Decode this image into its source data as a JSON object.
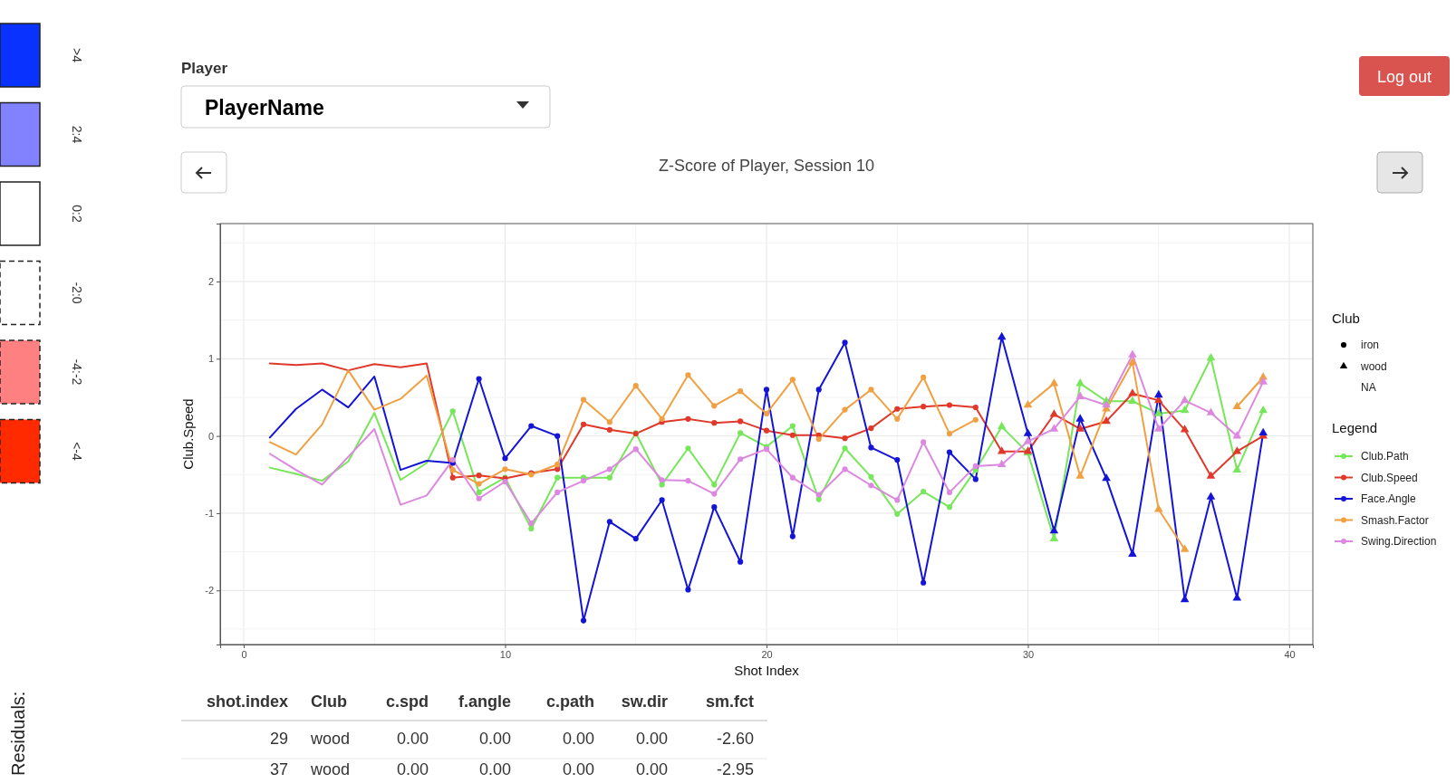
{
  "chart_data": {
    "type": "line",
    "title": "Z-Score of Player, Session 10",
    "xlabel": "Shot Index",
    "ylabel": "Club.Speed",
    "legend_title": "Legend",
    "x": [
      1,
      2,
      3,
      4,
      5,
      6,
      7,
      8,
      9,
      10,
      11,
      12,
      13,
      14,
      15,
      16,
      17,
      18,
      19,
      20,
      21,
      22,
      23,
      24,
      25,
      26,
      27,
      28,
      29,
      30,
      31,
      32,
      33,
      34,
      35,
      36,
      37,
      38,
      39
    ],
    "xlim": [
      -0.9,
      40.9
    ],
    "ylim": [
      -2.7,
      2.75
    ],
    "xticks": [
      0,
      10,
      20,
      30,
      40
    ],
    "yticks": [
      -2,
      -1,
      0,
      1,
      2
    ],
    "grid": true,
    "legend": "right",
    "marker": "none",
    "series": [
      {
        "name": "Club.Path",
        "color": "#77e65a",
        "values": [
          -0.41,
          -0.49,
          -0.58,
          -0.33,
          0.3,
          -0.57,
          -0.35,
          0.32,
          -0.73,
          -0.54,
          -1.2,
          -0.54,
          -0.54,
          -0.54,
          0.04,
          -0.63,
          -0.16,
          -0.63,
          0.04,
          -0.14,
          0.13,
          -0.82,
          -0.16,
          -0.53,
          -1.01,
          -0.72,
          -0.92,
          -0.44,
          0.12,
          -0.22,
          -1.33,
          0.68,
          0.45,
          0.45,
          0.29,
          0.33,
          1.01,
          -0.44,
          0.33
        ]
      },
      {
        "name": "Club.Speed",
        "color": "#e0382b",
        "values": [
          0.94,
          0.92,
          0.94,
          0.85,
          0.93,
          0.89,
          0.94,
          -0.54,
          -0.51,
          -0.55,
          -0.48,
          -0.43,
          0.15,
          0.08,
          0.03,
          0.18,
          0.22,
          0.17,
          0.19,
          0.07,
          0.01,
          0.01,
          -0.03,
          0.1,
          0.35,
          0.38,
          0.4,
          0.37,
          -0.2,
          -0.2,
          0.28,
          0.09,
          0.19,
          0.55,
          0.46,
          0.08,
          -0.52,
          -0.2,
          0.0
        ]
      },
      {
        "name": "Face.Angle",
        "color": "#1414d8",
        "values": [
          -0.02,
          0.35,
          0.6,
          0.37,
          0.77,
          -0.44,
          -0.32,
          -0.35,
          0.74,
          -0.29,
          0.13,
          0.0,
          -2.39,
          -1.11,
          -1.33,
          -0.83,
          -1.99,
          -0.92,
          -1.63,
          0.6,
          -1.3,
          0.6,
          1.21,
          -0.15,
          -0.31,
          -1.9,
          -0.21,
          -0.56,
          1.28,
          0.03,
          -1.23,
          0.22,
          -0.55,
          -1.53,
          0.53,
          -2.12,
          -0.79,
          -2.1,
          0.04
        ]
      },
      {
        "name": "Smash.Factor",
        "color": "#f0a040",
        "values": [
          -0.08,
          -0.24,
          0.15,
          0.85,
          0.34,
          0.48,
          0.78,
          -0.44,
          -0.62,
          -0.43,
          -0.5,
          -0.37,
          0.47,
          0.18,
          0.65,
          0.22,
          0.79,
          0.39,
          0.58,
          0.29,
          0.73,
          -0.04,
          0.34,
          0.6,
          0.22,
          0.76,
          0.03,
          0.21,
          null,
          0.4,
          0.68,
          -0.52,
          0.35,
          0.95,
          -0.95,
          -1.47,
          null,
          0.38,
          0.76
        ]
      },
      {
        "name": "Swing.Direction",
        "color": "#dd88e0",
        "values": [
          -0.23,
          -0.44,
          -0.63,
          -0.27,
          0.09,
          -0.89,
          -0.77,
          -0.31,
          -0.81,
          -0.59,
          -1.13,
          -0.73,
          -0.58,
          -0.43,
          -0.17,
          -0.57,
          -0.58,
          -0.75,
          -0.3,
          -0.17,
          -0.54,
          -0.76,
          -0.43,
          -0.64,
          -0.83,
          -0.08,
          -0.73,
          -0.39,
          -0.37,
          -0.07,
          0.09,
          0.51,
          0.4,
          1.05,
          0.09,
          0.46,
          0.3,
          0.0,
          0.7
        ]
      },
      {
        "type": "scatter",
        "marker": "circle",
        "x": [
          8,
          9,
          10,
          11,
          12,
          13,
          14,
          15,
          16,
          17,
          18,
          19,
          20,
          21,
          22,
          23,
          24,
          25,
          26,
          27,
          28,
          8,
          9,
          10,
          11,
          12,
          13,
          14,
          15,
          16,
          17,
          18,
          19,
          20,
          21,
          22,
          23,
          24,
          25,
          26,
          27,
          28,
          8,
          9,
          10,
          11,
          12,
          13,
          14,
          15,
          16,
          17,
          18,
          19,
          20,
          21,
          22,
          23,
          24,
          25,
          26,
          27,
          28,
          8,
          9,
          10,
          11,
          12,
          13,
          14,
          15,
          16,
          17,
          18,
          19,
          20,
          21,
          22,
          23,
          24,
          25,
          26,
          27,
          28,
          8,
          9,
          10,
          11,
          12,
          13,
          14,
          15,
          16,
          17,
          18,
          19,
          20,
          21,
          22,
          23,
          24,
          25,
          26,
          27,
          28
        ],
        "values": [
          0.32,
          -0.73,
          -0.54,
          -1.2,
          -0.54,
          -0.54,
          -0.54,
          0.04,
          -0.63,
          -0.16,
          -0.63,
          0.04,
          -0.14,
          0.13,
          -0.82,
          -0.16,
          -0.53,
          -1.01,
          -0.72,
          -0.92,
          -0.44,
          -0.54,
          -0.51,
          -0.55,
          -0.48,
          -0.43,
          0.15,
          0.08,
          0.03,
          0.18,
          0.22,
          0.17,
          0.19,
          0.07,
          0.01,
          0.01,
          -0.03,
          0.1,
          0.35,
          0.38,
          0.4,
          0.37,
          -0.35,
          0.74,
          -0.29,
          0.13,
          0.0,
          -2.39,
          -1.11,
          -1.33,
          -0.83,
          -1.99,
          -0.92,
          -1.63,
          0.6,
          -1.3,
          0.6,
          1.21,
          -0.15,
          -0.31,
          -1.9,
          -0.21,
          -0.56,
          -0.44,
          -0.62,
          -0.43,
          -0.5,
          -0.37,
          0.47,
          0.18,
          0.65,
          0.22,
          0.79,
          0.39,
          0.58,
          0.29,
          0.73,
          -0.04,
          0.34,
          0.6,
          0.22,
          0.76,
          0.03,
          0.21,
          -0.31,
          -0.81,
          -0.59,
          -1.13,
          -0.73,
          -0.58,
          -0.43,
          -0.17,
          -0.57,
          -0.58,
          -0.75,
          -0.3,
          -0.17,
          -0.54,
          -0.76,
          -0.43,
          -0.64,
          -0.83,
          -0.08,
          -0.73,
          -0.39
        ],
        "colors": [
          "#77e65a",
          "#77e65a",
          "#77e65a",
          "#77e65a",
          "#77e65a",
          "#77e65a",
          "#77e65a",
          "#77e65a",
          "#77e65a",
          "#77e65a",
          "#77e65a",
          "#77e65a",
          "#77e65a",
          "#77e65a",
          "#77e65a",
          "#77e65a",
          "#77e65a",
          "#77e65a",
          "#77e65a",
          "#77e65a",
          "#77e65a",
          "#e0382b",
          "#e0382b",
          "#e0382b",
          "#e0382b",
          "#e0382b",
          "#e0382b",
          "#e0382b",
          "#e0382b",
          "#e0382b",
          "#e0382b",
          "#e0382b",
          "#e0382b",
          "#e0382b",
          "#e0382b",
          "#e0382b",
          "#e0382b",
          "#e0382b",
          "#e0382b",
          "#e0382b",
          "#e0382b",
          "#e0382b",
          "#1414d8",
          "#1414d8",
          "#1414d8",
          "#1414d8",
          "#1414d8",
          "#1414d8",
          "#1414d8",
          "#1414d8",
          "#1414d8",
          "#1414d8",
          "#1414d8",
          "#1414d8",
          "#1414d8",
          "#1414d8",
          "#1414d8",
          "#1414d8",
          "#1414d8",
          "#1414d8",
          "#1414d8",
          "#1414d8",
          "#1414d8",
          "#f0a040",
          "#f0a040",
          "#f0a040",
          "#f0a040",
          "#f0a040",
          "#f0a040",
          "#f0a040",
          "#f0a040",
          "#f0a040",
          "#f0a040",
          "#f0a040",
          "#f0a040",
          "#f0a040",
          "#f0a040",
          "#f0a040",
          "#f0a040",
          "#f0a040",
          "#f0a040",
          "#f0a040",
          "#f0a040",
          "#f0a040",
          "#dd88e0",
          "#dd88e0",
          "#dd88e0",
          "#dd88e0",
          "#dd88e0",
          "#dd88e0",
          "#dd88e0",
          "#dd88e0",
          "#dd88e0",
          "#dd88e0",
          "#dd88e0",
          "#dd88e0",
          "#dd88e0",
          "#dd88e0",
          "#dd88e0",
          "#dd88e0",
          "#dd88e0",
          "#dd88e0",
          "#dd88e0",
          "#dd88e0",
          "#dd88e0"
        ]
      },
      {
        "type": "scatter",
        "marker": "triangle",
        "x": [
          29,
          30,
          31,
          32,
          33,
          34,
          35,
          36,
          37,
          38,
          39,
          29,
          30,
          31,
          32,
          33,
          34,
          35,
          36,
          37,
          38,
          39,
          29,
          30,
          31,
          32,
          33,
          34,
          35,
          36,
          37,
          38,
          39,
          30,
          31,
          32,
          33,
          34,
          35,
          36,
          38,
          39,
          29,
          30,
          31,
          32,
          33,
          34,
          35,
          36,
          37,
          38,
          39
        ],
        "values": [
          0.12,
          -0.22,
          -1.33,
          0.68,
          0.45,
          0.45,
          0.29,
          0.33,
          1.01,
          -0.44,
          0.33,
          -0.2,
          -0.2,
          0.28,
          0.09,
          0.19,
          0.55,
          0.46,
          0.08,
          -0.52,
          -0.2,
          0.0,
          1.28,
          0.03,
          -1.23,
          0.22,
          -0.55,
          -1.53,
          0.53,
          -2.12,
          -0.79,
          -2.1,
          0.04,
          0.4,
          0.68,
          -0.52,
          0.35,
          0.95,
          -0.95,
          -1.47,
          0.38,
          0.76,
          -0.37,
          -0.07,
          0.09,
          0.51,
          0.4,
          1.05,
          0.09,
          0.46,
          0.3,
          0.0,
          0.7
        ],
        "colors": [
          "#77e65a",
          "#77e65a",
          "#77e65a",
          "#77e65a",
          "#77e65a",
          "#77e65a",
          "#77e65a",
          "#77e65a",
          "#77e65a",
          "#77e65a",
          "#77e65a",
          "#e0382b",
          "#e0382b",
          "#e0382b",
          "#e0382b",
          "#e0382b",
          "#e0382b",
          "#e0382b",
          "#e0382b",
          "#e0382b",
          "#e0382b",
          "#e0382b",
          "#1414d8",
          "#1414d8",
          "#1414d8",
          "#1414d8",
          "#1414d8",
          "#1414d8",
          "#1414d8",
          "#1414d8",
          "#1414d8",
          "#1414d8",
          "#1414d8",
          "#f0a040",
          "#f0a040",
          "#f0a040",
          "#f0a040",
          "#f0a040",
          "#f0a040",
          "#f0a040",
          "#f0a040",
          "#f0a040",
          "#dd88e0",
          "#dd88e0",
          "#dd88e0",
          "#dd88e0",
          "#dd88e0",
          "#dd88e0",
          "#dd88e0",
          "#dd88e0",
          "#dd88e0",
          "#dd88e0",
          "#dd88e0"
        ]
      }
    ],
    "annotations": [
      "Player",
      "PlayerName",
      "Log out",
      ">4",
      "2:4",
      "0:2",
      "-2:0",
      "-4:-2",
      "<-4",
      "Residuals:",
      "shot.index",
      "Club",
      "c.spd",
      "f.angle",
      "c.path",
      "sw.dir",
      "sm.fct",
      "29",
      "wood",
      "0.00",
      "0.00",
      "0.00",
      "0.00",
      "-2.60",
      "37",
      "wood",
      "0.00",
      "0.00",
      "0.00",
      "0.00",
      "-2.95",
      "Club",
      "NA",
      "iron",
      "wood"
    ]
  }
}
